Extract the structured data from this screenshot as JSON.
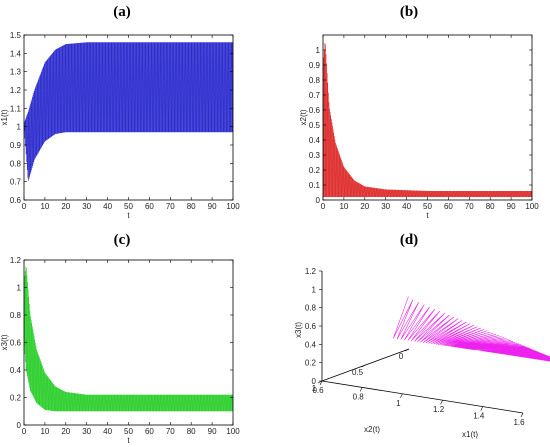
{
  "panels": {
    "a": "(a)",
    "b": "(b)",
    "c": "(c)",
    "d": "(d)"
  },
  "chart_data": [
    {
      "id": "a",
      "type": "line",
      "xlabel": "t",
      "ylabel": "x1(t)",
      "xlim": [
        0,
        100
      ],
      "ylim": [
        0.6,
        1.5
      ],
      "xticks": [
        0,
        10,
        20,
        30,
        40,
        50,
        60,
        70,
        80,
        90,
        100
      ],
      "yticks": [
        0.6,
        0.7,
        0.8,
        0.9,
        1,
        1.1,
        1.2,
        1.3,
        1.4,
        1.5
      ],
      "color": "#2222cc",
      "band_upper": {
        "t": [
          0,
          2,
          5,
          10,
          15,
          20,
          30,
          50,
          100
        ],
        "y": [
          1.02,
          1.08,
          1.2,
          1.35,
          1.42,
          1.45,
          1.46,
          1.46,
          1.46
        ]
      },
      "band_lower": {
        "t": [
          0,
          2,
          5,
          10,
          15,
          20,
          30,
          50,
          100
        ],
        "y": [
          1.0,
          0.7,
          0.82,
          0.92,
          0.96,
          0.97,
          0.97,
          0.97,
          0.97
        ]
      },
      "grid": false
    },
    {
      "id": "b",
      "type": "line",
      "xlabel": "t",
      "ylabel": "x2(t)",
      "xlim": [
        0,
        100
      ],
      "ylim": [
        0,
        1.1
      ],
      "xticks": [
        0,
        10,
        20,
        30,
        40,
        50,
        60,
        70,
        80,
        90,
        100
      ],
      "yticks": [
        0,
        0.1,
        0.2,
        0.3,
        0.4,
        0.5,
        0.6,
        0.7,
        0.8,
        0.9,
        1
      ],
      "color": "#dd2222",
      "band_upper": {
        "t": [
          0,
          1,
          3,
          6,
          10,
          15,
          20,
          30,
          50,
          100
        ],
        "y": [
          0.9,
          1.07,
          0.62,
          0.38,
          0.22,
          0.13,
          0.09,
          0.07,
          0.06,
          0.06
        ]
      },
      "band_lower": {
        "t": [
          0,
          1,
          3,
          6,
          10,
          15,
          20,
          30,
          50,
          100
        ],
        "y": [
          0.02,
          0.02,
          0.02,
          0.02,
          0.02,
          0.02,
          0.02,
          0.02,
          0.02,
          0.02
        ]
      },
      "grid": false
    },
    {
      "id": "c",
      "type": "line",
      "xlabel": "t",
      "ylabel": "x3(t)",
      "xlim": [
        0,
        100
      ],
      "ylim": [
        0,
        1.2
      ],
      "xticks": [
        0,
        10,
        20,
        30,
        40,
        50,
        60,
        70,
        80,
        90,
        100
      ],
      "yticks": [
        0,
        0.2,
        0.4,
        0.6,
        0.8,
        1,
        1.2
      ],
      "color": "#22cc22",
      "band_upper": {
        "t": [
          0,
          1,
          3,
          6,
          10,
          15,
          20,
          30,
          50,
          100
        ],
        "y": [
          1.05,
          1.17,
          0.8,
          0.55,
          0.38,
          0.28,
          0.24,
          0.22,
          0.22,
          0.22
        ]
      },
      "band_lower": {
        "t": [
          0,
          1,
          3,
          6,
          10,
          15,
          20,
          30,
          50,
          100
        ],
        "y": [
          0.6,
          0.4,
          0.25,
          0.16,
          0.11,
          0.1,
          0.1,
          0.1,
          0.1,
          0.1
        ]
      },
      "grid": false
    },
    {
      "id": "d",
      "type": "line3d",
      "xlabel": "x1(t)",
      "ylabel": "x2(t)",
      "zlabel": "x3(t)",
      "xticks": [
        0.6,
        0.8,
        1,
        1.2,
        1.4,
        1.6
      ],
      "yticks": [
        0,
        0.5,
        1
      ],
      "zticks": [
        0,
        0.2,
        0.4,
        0.6,
        0.8,
        1,
        1.2
      ],
      "xlim": [
        0.6,
        1.6
      ],
      "ylim": [
        0,
        1
      ],
      "zlim": [
        0,
        1.2
      ],
      "color": "#ee22ee",
      "grid": false
    }
  ]
}
